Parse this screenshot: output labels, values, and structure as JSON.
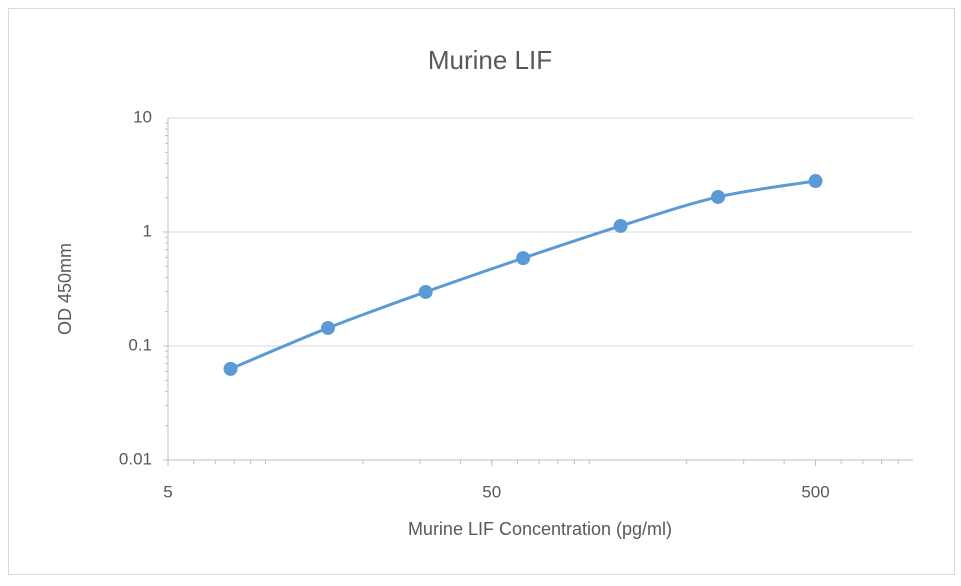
{
  "chart_data": {
    "type": "line",
    "title": "Murine LIF",
    "x_label": "Murine LIF Concentration (pg/ml)",
    "y_label": "OD 450mm",
    "x": [
      7.8,
      15.6,
      31.25,
      62.5,
      125,
      250,
      500
    ],
    "series": [
      {
        "name": "Murine LIF",
        "color": "#5b9bd5",
        "values": [
          0.063,
          0.144,
          0.298,
          0.59,
          1.13,
          2.03,
          2.8
        ]
      }
    ],
    "x_log": true,
    "y_log": true,
    "xlim": [
      5,
      1000
    ],
    "xticks": [
      5,
      50,
      500
    ],
    "ylim": [
      0.01,
      10
    ],
    "yticks": [
      0.01,
      0.1,
      1,
      10
    ],
    "grid": true
  }
}
